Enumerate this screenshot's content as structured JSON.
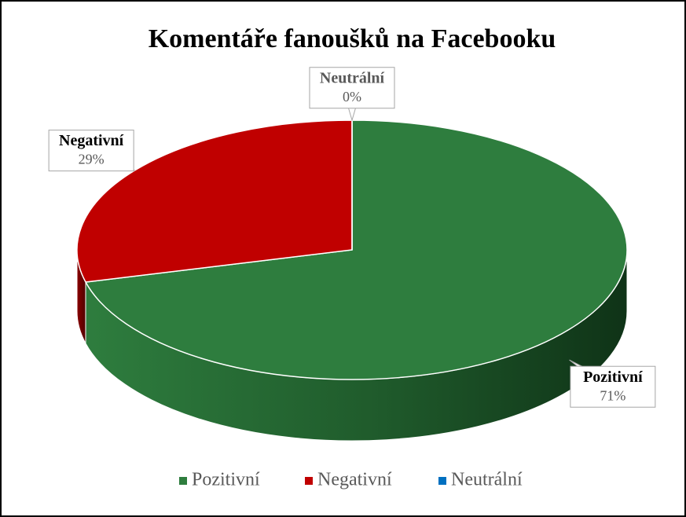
{
  "chart_data": {
    "type": "pie",
    "title": "Komentáře fanoušků na Facebooku",
    "categories": [
      "Pozitivní",
      "Negativní",
      "Neutrální"
    ],
    "values": [
      71,
      29,
      0
    ],
    "value_labels": [
      "71%",
      "29%",
      "0%"
    ],
    "colors": [
      "#2e7d3e",
      "#c00000",
      "#0070c0"
    ],
    "legend": "bottom"
  }
}
